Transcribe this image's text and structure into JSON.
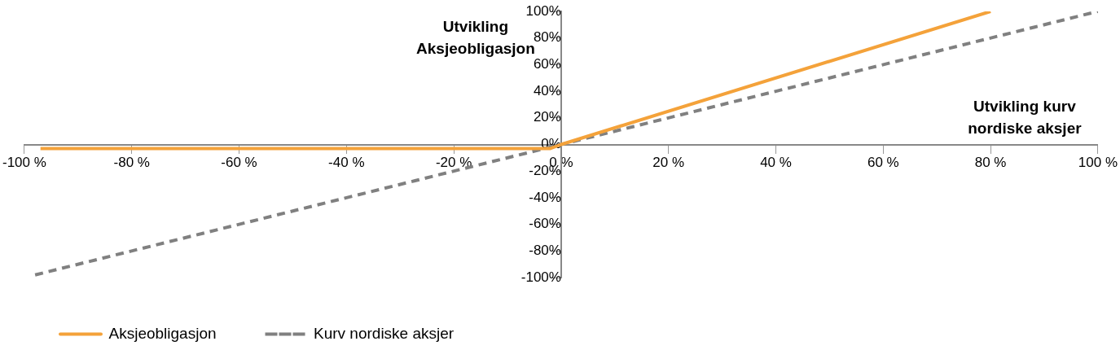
{
  "chart_data": {
    "type": "line",
    "xlabel": "Utvikling kurv nordiske aksjer",
    "ylabel": "Utvikling Aksjeobligasjon",
    "series": [
      {
        "name": "Aksjeobligasjon",
        "color": "#f4a23a",
        "line_style": "solid",
        "x": [
          -97,
          -2,
          0,
          80
        ],
        "values": [
          -3,
          -3,
          0,
          100
        ]
      },
      {
        "name": "Kurv nordiske aksjer",
        "color": "#808080",
        "line_style": "dashed",
        "x": [
          -98,
          100
        ],
        "values": [
          -98,
          100
        ]
      }
    ],
    "xlim": [
      -100,
      100
    ],
    "ylim": [
      -100,
      100
    ],
    "xticks": [
      {
        "value": -100,
        "label": "-100 %"
      },
      {
        "value": -80,
        "label": "-80 %"
      },
      {
        "value": -60,
        "label": "-60 %"
      },
      {
        "value": -40,
        "label": "-40 %"
      },
      {
        "value": -20,
        "label": "-20 %"
      },
      {
        "value": 0,
        "label": "0 %"
      },
      {
        "value": 20,
        "label": "20 %"
      },
      {
        "value": 40,
        "label": "40 %"
      },
      {
        "value": 60,
        "label": "60 %"
      },
      {
        "value": 80,
        "label": "80 %"
      },
      {
        "value": 100,
        "label": "100 %"
      }
    ],
    "yticks": [
      {
        "value": -100,
        "label": "-100%"
      },
      {
        "value": -80,
        "label": "-80%"
      },
      {
        "value": -60,
        "label": "-60%"
      },
      {
        "value": -40,
        "label": "-40%"
      },
      {
        "value": -20,
        "label": "-20%"
      },
      {
        "value": 0,
        "label": "0%"
      },
      {
        "value": 20,
        "label": "20%"
      },
      {
        "value": 40,
        "label": "40%"
      },
      {
        "value": 60,
        "label": "60%"
      },
      {
        "value": 80,
        "label": "80%"
      },
      {
        "value": 100,
        "label": "100%"
      }
    ],
    "grid": false,
    "legend": "bottom left",
    "marker": "none"
  }
}
